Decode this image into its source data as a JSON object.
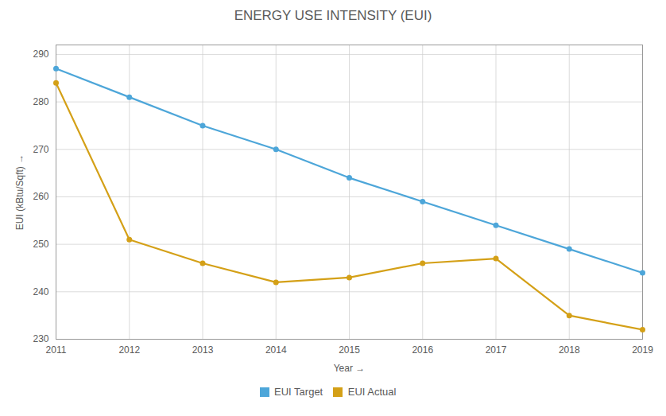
{
  "chart_data": {
    "type": "line",
    "title": "ENERGY USE INTENSITY (EUI)",
    "xlabel": "Year",
    "ylabel": "EUI (kBtu/Sqft)",
    "x": [
      2011,
      2012,
      2013,
      2014,
      2015,
      2016,
      2017,
      2018,
      2019
    ],
    "series": [
      {
        "name": "EUI Target",
        "color": "#4da6d9",
        "values": [
          287,
          281,
          275,
          270,
          264,
          259,
          254,
          249,
          244
        ]
      },
      {
        "name": "EUI Actual",
        "color": "#d4a017",
        "values": [
          284,
          251,
          246,
          242,
          243,
          246,
          247,
          235,
          232
        ]
      }
    ],
    "marker": "circle",
    "xlim": [
      2011,
      2019
    ],
    "xticks": [
      2011,
      2012,
      2013,
      2014,
      2015,
      2016,
      2017,
      2018,
      2019
    ],
    "ylim": [
      230,
      292
    ],
    "yticks": [
      230,
      240,
      250,
      260,
      270,
      280,
      290
    ],
    "grid": true,
    "legend": "bottom"
  }
}
